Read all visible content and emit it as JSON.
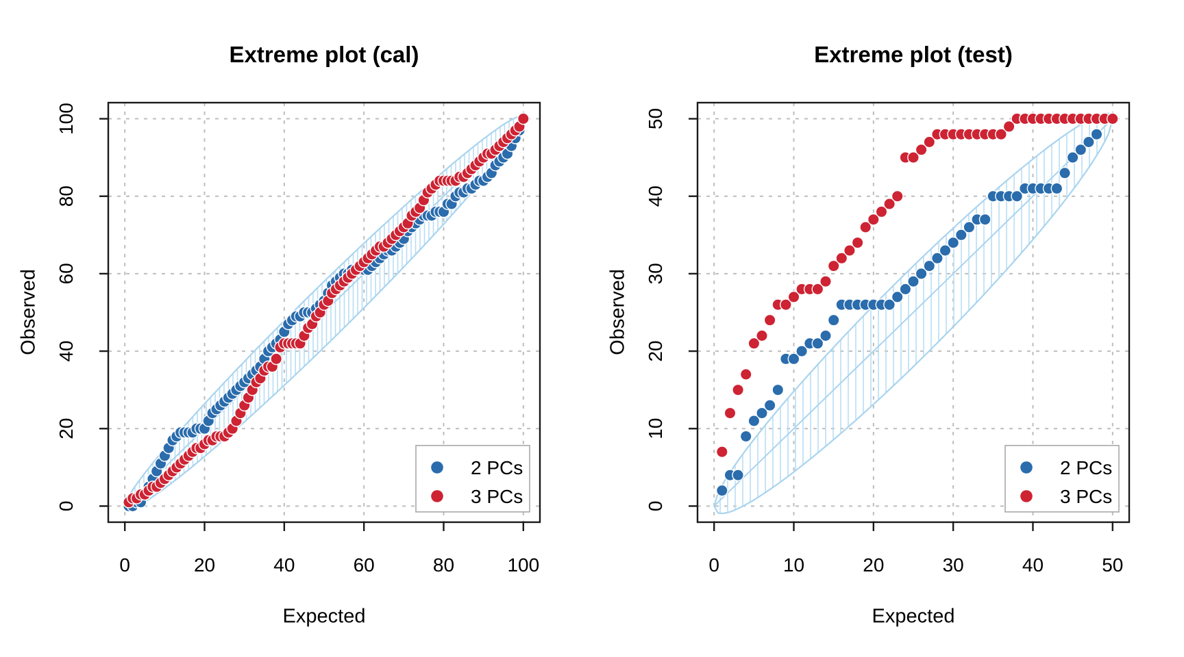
{
  "figure": {
    "background": "#FFFFFF",
    "description": "Two R-style calibration scatter plots with hatched confidence envelopes"
  },
  "colors": {
    "blue": "#2A6CAC",
    "red": "#CD2333",
    "band": "#A9D4EF",
    "band_hatch": "#B9DDF3",
    "grid": "#BDBDBD",
    "axis": "#1A1A1A",
    "legend_border": "#A8A8A8",
    "point_outline": "#FFFFFF",
    "text": "#000000"
  },
  "chart_data": [
    {
      "type": "scatter",
      "title": "Extreme plot (cal)",
      "xlabel": "Expected",
      "ylabel": "Observed",
      "xlim": [
        0,
        100
      ],
      "ylim": [
        0,
        100
      ],
      "xticks": [
        0,
        20,
        40,
        60,
        80,
        100
      ],
      "yticks": [
        0,
        20,
        40,
        60,
        80,
        100
      ],
      "grid": "dashed",
      "envelope": {
        "shape": "lens around identity line",
        "upper_k": 16,
        "lower_k": 18,
        "hatch": "vertical",
        "hatch_spacing_px": 6.5
      },
      "legend": {
        "position": "bottom-right",
        "entries": [
          {
            "label": "2 PCs",
            "color": "blue"
          },
          {
            "label": "3 PCs",
            "color": "red"
          }
        ]
      },
      "series": [
        {
          "name": "2 PCs",
          "color": "blue",
          "x": {
            "from": 1,
            "to": 100
          },
          "y": [
            0,
            0,
            1,
            1,
            3,
            5,
            7,
            9,
            11,
            13,
            15,
            17,
            18,
            19,
            19,
            19,
            19,
            20,
            20,
            20,
            22,
            24,
            25,
            26,
            27,
            28,
            29,
            30,
            31,
            32,
            33,
            34,
            35,
            36,
            38,
            40,
            41,
            42,
            43,
            45,
            47,
            48,
            49,
            49,
            50,
            50,
            50,
            51,
            52,
            53,
            55,
            57,
            58,
            59,
            60,
            60,
            61,
            61,
            61,
            61,
            61,
            62,
            63,
            64,
            65,
            66,
            66,
            67,
            68,
            69,
            71,
            72,
            73,
            74,
            75,
            75,
            75,
            76,
            76,
            76,
            78,
            78,
            80,
            81,
            81,
            82,
            82,
            83,
            84,
            84,
            85,
            86,
            88,
            89,
            90,
            91,
            93,
            95,
            97,
            100
          ]
        },
        {
          "name": "3 PCs",
          "color": "red",
          "x": {
            "from": 1,
            "to": 100
          },
          "y": [
            1,
            2,
            2,
            3,
            3,
            4,
            5,
            5,
            6,
            7,
            8,
            9,
            10,
            11,
            12,
            13,
            14,
            15,
            15,
            16,
            17,
            17,
            18,
            18,
            18,
            19,
            20,
            22,
            24,
            26,
            28,
            30,
            32,
            33,
            35,
            36,
            36,
            38,
            41,
            42,
            42,
            42,
            42,
            42,
            44,
            46,
            47,
            49,
            50,
            52,
            53,
            55,
            56,
            57,
            58,
            59,
            60,
            61,
            62,
            63,
            64,
            65,
            66,
            67,
            67,
            68,
            69,
            70,
            71,
            72,
            73,
            75,
            76,
            77,
            79,
            81,
            82,
            83,
            84,
            84,
            84,
            84,
            84,
            85,
            85,
            86,
            87,
            88,
            89,
            90,
            91,
            91,
            92,
            93,
            94,
            95,
            96,
            97,
            98,
            100
          ]
        }
      ]
    },
    {
      "type": "scatter",
      "title": "Extreme plot (test)",
      "xlabel": "Expected",
      "ylabel": "Observed",
      "xlim": [
        0,
        50
      ],
      "ylim": [
        0,
        50
      ],
      "xticks": [
        0,
        10,
        20,
        30,
        40,
        50
      ],
      "yticks": [
        0,
        10,
        20,
        30,
        40,
        50
      ],
      "grid": "dashed",
      "envelope": {
        "shape": "lens around identity line",
        "upper_k": 12,
        "lower_k": 14,
        "hatch": "vertical",
        "hatch_spacing_px": 11
      },
      "legend": {
        "position": "bottom-right",
        "entries": [
          {
            "label": "2 PCs",
            "color": "blue"
          },
          {
            "label": "3 PCs",
            "color": "red"
          }
        ]
      },
      "series": [
        {
          "name": "2 PCs",
          "color": "blue",
          "x": {
            "from": 1,
            "to": 50
          },
          "y": [
            2,
            4,
            4,
            9,
            11,
            12,
            13,
            15,
            19,
            19,
            20,
            21,
            21,
            22,
            24,
            26,
            26,
            26,
            26,
            26,
            26,
            26,
            27,
            28,
            29,
            30,
            31,
            32,
            33,
            34,
            35,
            36,
            37,
            37,
            40,
            40,
            40,
            40,
            41,
            41,
            41,
            41,
            41,
            43,
            45,
            46,
            47,
            48,
            50,
            50
          ]
        },
        {
          "name": "3 PCs",
          "color": "red",
          "x": {
            "from": 1,
            "to": 50
          },
          "y": [
            7,
            12,
            15,
            17,
            21,
            22,
            24,
            26,
            26,
            27,
            28,
            28,
            28,
            29,
            31,
            32,
            33,
            34,
            36,
            37,
            38,
            39,
            40,
            45,
            45,
            46,
            47,
            48,
            48,
            48,
            48,
            48,
            48,
            48,
            48,
            48,
            49,
            50,
            50,
            50,
            50,
            50,
            50,
            50,
            50,
            50,
            50,
            50,
            50,
            50
          ]
        }
      ]
    }
  ]
}
